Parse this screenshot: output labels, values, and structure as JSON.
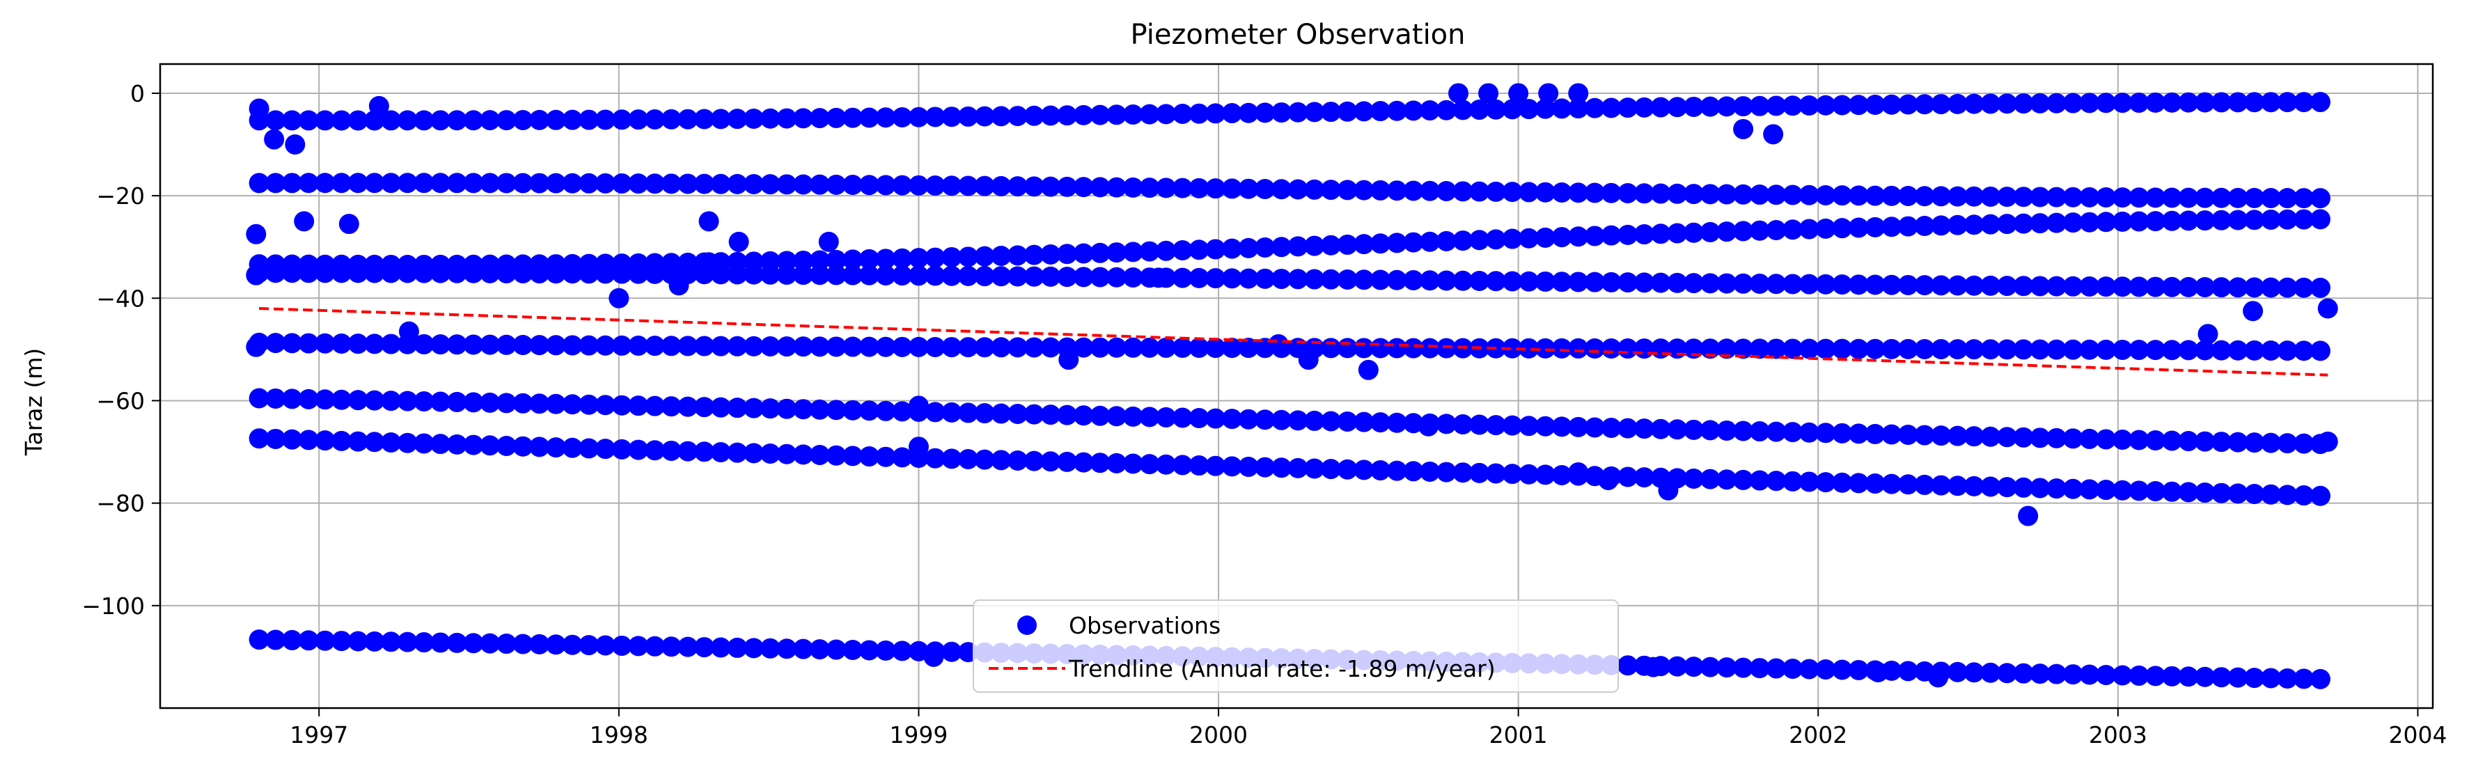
{
  "chart_data": {
    "type": "scatter",
    "title": "Piezometer Observation",
    "xlabel": "",
    "ylabel": "Taraz (m)",
    "xlim": [
      1996.47,
      2004.05
    ],
    "ylim": [
      -120.0,
      5.7
    ],
    "x_ticks": [
      1997,
      1998,
      1999,
      2000,
      2001,
      2002,
      2003,
      2004
    ],
    "y_ticks": [
      0,
      -20,
      -40,
      -60,
      -80,
      -100
    ],
    "y_tick_labels": [
      "0",
      "−20",
      "−40",
      "−60",
      "−80",
      "−100"
    ],
    "grid": true,
    "legend_position": "bottom-center",
    "colors": {
      "observations": "#0000ff",
      "trendline": "#ff0000",
      "grid": "#b0b0b0"
    },
    "series": [
      {
        "name": "Observations",
        "kind": "scatter",
        "color": "#0000ff",
        "rows": [
          {
            "pattern": "flat",
            "y": -3.5,
            "level": 1.2
          },
          {
            "pattern": "flat",
            "y": -19,
            "level": 1.0
          },
          {
            "pattern": "flat",
            "y": -29,
            "level": 3.0
          },
          {
            "pattern": "flat",
            "y": -36,
            "level": 2.0
          },
          {
            "pattern": "flat",
            "y": -48,
            "level": 1.5
          },
          {
            "pattern": "flat",
            "y": -60,
            "level": 1.0
          },
          {
            "pattern": "flat",
            "y": -67,
            "level": 0.8
          },
          {
            "pattern": "flat",
            "y": -107,
            "level": 0.8
          }
        ],
        "points": [
          {
            "x": 1996.8,
            "y": -3.0
          },
          {
            "x": 1996.85,
            "y": -9
          },
          {
            "x": 1996.92,
            "y": -10
          },
          {
            "x": 1997.2,
            "y": -2.5
          },
          {
            "x": 1996.79,
            "y": -27.5
          },
          {
            "x": 1996.95,
            "y": -25
          },
          {
            "x": 1997.1,
            "y": -25.5
          },
          {
            "x": 1996.79,
            "y": -35.5
          },
          {
            "x": 1996.79,
            "y": -49.5
          },
          {
            "x": 1997.3,
            "y": -46.5
          },
          {
            "x": 1998.0,
            "y": -40
          },
          {
            "x": 1998.2,
            "y": -37.5
          },
          {
            "x": 1998.3,
            "y": -33
          },
          {
            "x": 1998.3,
            "y": -25
          },
          {
            "x": 1998.4,
            "y": -29
          },
          {
            "x": 1998.7,
            "y": -29
          },
          {
            "x": 1999.0,
            "y": -69
          },
          {
            "x": 1999.0,
            "y": -61
          },
          {
            "x": 1999.05,
            "y": -110
          },
          {
            "x": 1999.5,
            "y": -52
          },
          {
            "x": 1999.8,
            "y": -36
          },
          {
            "x": 2000.2,
            "y": -49
          },
          {
            "x": 2000.3,
            "y": -52
          },
          {
            "x": 2000.5,
            "y": -54
          },
          {
            "x": 2000.7,
            "y": -65
          },
          {
            "x": 2000.8,
            "y": 0
          },
          {
            "x": 2000.9,
            "y": 0
          },
          {
            "x": 2001.0,
            "y": 0
          },
          {
            "x": 2001.1,
            "y": 0
          },
          {
            "x": 2001.2,
            "y": 0
          },
          {
            "x": 2001.2,
            "y": -74
          },
          {
            "x": 2001.3,
            "y": -75.5
          },
          {
            "x": 2001.45,
            "y": -112
          },
          {
            "x": 2001.5,
            "y": -77.5
          },
          {
            "x": 2001.75,
            "y": -7
          },
          {
            "x": 2001.85,
            "y": -8
          },
          {
            "x": 2002.2,
            "y": -113
          },
          {
            "x": 2002.4,
            "y": -114
          },
          {
            "x": 2002.7,
            "y": -82.5
          },
          {
            "x": 2003.3,
            "y": -47
          },
          {
            "x": 2003.45,
            "y": -42.5
          },
          {
            "x": 2003.7,
            "y": -42
          },
          {
            "x": 2003.7,
            "y": -68
          }
        ]
      },
      {
        "name": "Trendline (Annual rate: -1.89 m/year)",
        "kind": "line",
        "color": "#ff0000",
        "x": [
          1996.8,
          2003.7
        ],
        "y": [
          -42.0,
          -55.0
        ]
      }
    ]
  }
}
